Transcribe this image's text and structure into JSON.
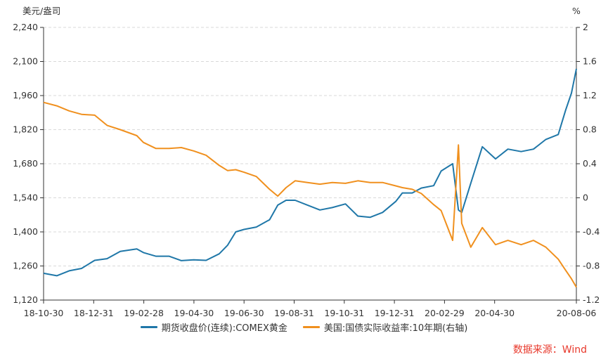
{
  "chart_data": {
    "type": "line",
    "title": "",
    "y_left_unit": "美元/盎司",
    "y_right_unit": "%",
    "ylim_left": [
      1120,
      2240
    ],
    "ylim_right": [
      -1.2,
      2
    ],
    "yticks_left": [
      "2,240",
      "2,100",
      "1,960",
      "1,820",
      "1,680",
      "1,540",
      "1,400",
      "1,260",
      "1,120"
    ],
    "yticks_right": [
      "2",
      "1.6",
      "1.2",
      "0.8",
      "0.4",
      "0",
      "-0.4",
      "-0.8",
      "-1.2"
    ],
    "x_tick_labels": [
      "18-10-30",
      "18-12-31",
      "19-02-28",
      "19-04-30",
      "19-06-30",
      "19-08-31",
      "19-10-31",
      "19-12-31",
      "20-02-29",
      "20-04-30",
      "20-08-06"
    ],
    "grid": "horizontal dashed",
    "legend_placement": "bottom",
    "series": [
      {
        "name": "期货收盘价(连续):COMEX黄金",
        "axis": "left",
        "color": "#1f77a8",
        "x": [
          "2018-10-30",
          "2018-11-15",
          "2018-11-30",
          "2018-12-15",
          "2018-12-31",
          "2019-01-15",
          "2019-01-31",
          "2019-02-20",
          "2019-02-28",
          "2019-03-15",
          "2019-03-31",
          "2019-04-15",
          "2019-04-30",
          "2019-05-15",
          "2019-05-31",
          "2019-06-10",
          "2019-06-20",
          "2019-06-30",
          "2019-07-15",
          "2019-07-31",
          "2019-08-10",
          "2019-08-20",
          "2019-08-31",
          "2019-09-15",
          "2019-09-30",
          "2019-10-15",
          "2019-10-31",
          "2019-11-15",
          "2019-11-30",
          "2019-12-15",
          "2019-12-31",
          "2020-01-08",
          "2020-01-20",
          "2020-01-31",
          "2020-02-15",
          "2020-02-24",
          "2020-03-09",
          "2020-03-16",
          "2020-03-20",
          "2020-03-31",
          "2020-04-14",
          "2020-04-30",
          "2020-05-15",
          "2020-05-31",
          "2020-06-15",
          "2020-06-30",
          "2020-07-15",
          "2020-07-24",
          "2020-07-31",
          "2020-08-06"
        ],
        "y": [
          1230,
          1220,
          1240,
          1250,
          1283,
          1290,
          1320,
          1330,
          1315,
          1300,
          1300,
          1282,
          1285,
          1283,
          1310,
          1345,
          1400,
          1410,
          1420,
          1450,
          1510,
          1530,
          1530,
          1510,
          1490,
          1500,
          1515,
          1465,
          1460,
          1480,
          1525,
          1560,
          1560,
          1580,
          1590,
          1650,
          1680,
          1490,
          1480,
          1600,
          1750,
          1700,
          1740,
          1730,
          1740,
          1780,
          1800,
          1900,
          1970,
          2070
        ]
      },
      {
        "name": "美国:国债实际收益率:10年期(右轴)",
        "axis": "right",
        "color": "#f0901e",
        "x": [
          "2018-10-30",
          "2018-11-15",
          "2018-11-30",
          "2018-12-15",
          "2018-12-31",
          "2019-01-15",
          "2019-01-31",
          "2019-02-20",
          "2019-02-28",
          "2019-03-15",
          "2019-03-31",
          "2019-04-15",
          "2019-04-30",
          "2019-05-15",
          "2019-05-31",
          "2019-06-10",
          "2019-06-20",
          "2019-06-30",
          "2019-07-15",
          "2019-07-31",
          "2019-08-10",
          "2019-08-20",
          "2019-08-31",
          "2019-09-15",
          "2019-09-30",
          "2019-10-15",
          "2019-10-31",
          "2019-11-15",
          "2019-11-30",
          "2019-12-15",
          "2019-12-31",
          "2020-01-08",
          "2020-01-20",
          "2020-01-31",
          "2020-02-15",
          "2020-02-24",
          "2020-03-09",
          "2020-03-16",
          "2020-03-20",
          "2020-03-31",
          "2020-04-14",
          "2020-04-30",
          "2020-05-15",
          "2020-05-31",
          "2020-06-15",
          "2020-06-30",
          "2020-07-15",
          "2020-07-24",
          "2020-07-31",
          "2020-08-06"
        ],
        "y": [
          1.12,
          1.08,
          1.02,
          0.98,
          0.97,
          0.85,
          0.8,
          0.73,
          0.65,
          0.58,
          0.58,
          0.59,
          0.55,
          0.5,
          0.38,
          0.32,
          0.33,
          0.3,
          0.25,
          0.1,
          0.02,
          0.12,
          0.2,
          0.18,
          0.16,
          0.18,
          0.17,
          0.2,
          0.18,
          0.18,
          0.14,
          0.12,
          0.1,
          0.05,
          -0.08,
          -0.15,
          -0.5,
          0.62,
          -0.3,
          -0.58,
          -0.35,
          -0.55,
          -0.5,
          -0.55,
          -0.5,
          -0.58,
          -0.72,
          -0.85,
          -0.95,
          -1.05
        ]
      }
    ]
  },
  "source_note": "数据来源：Wind"
}
